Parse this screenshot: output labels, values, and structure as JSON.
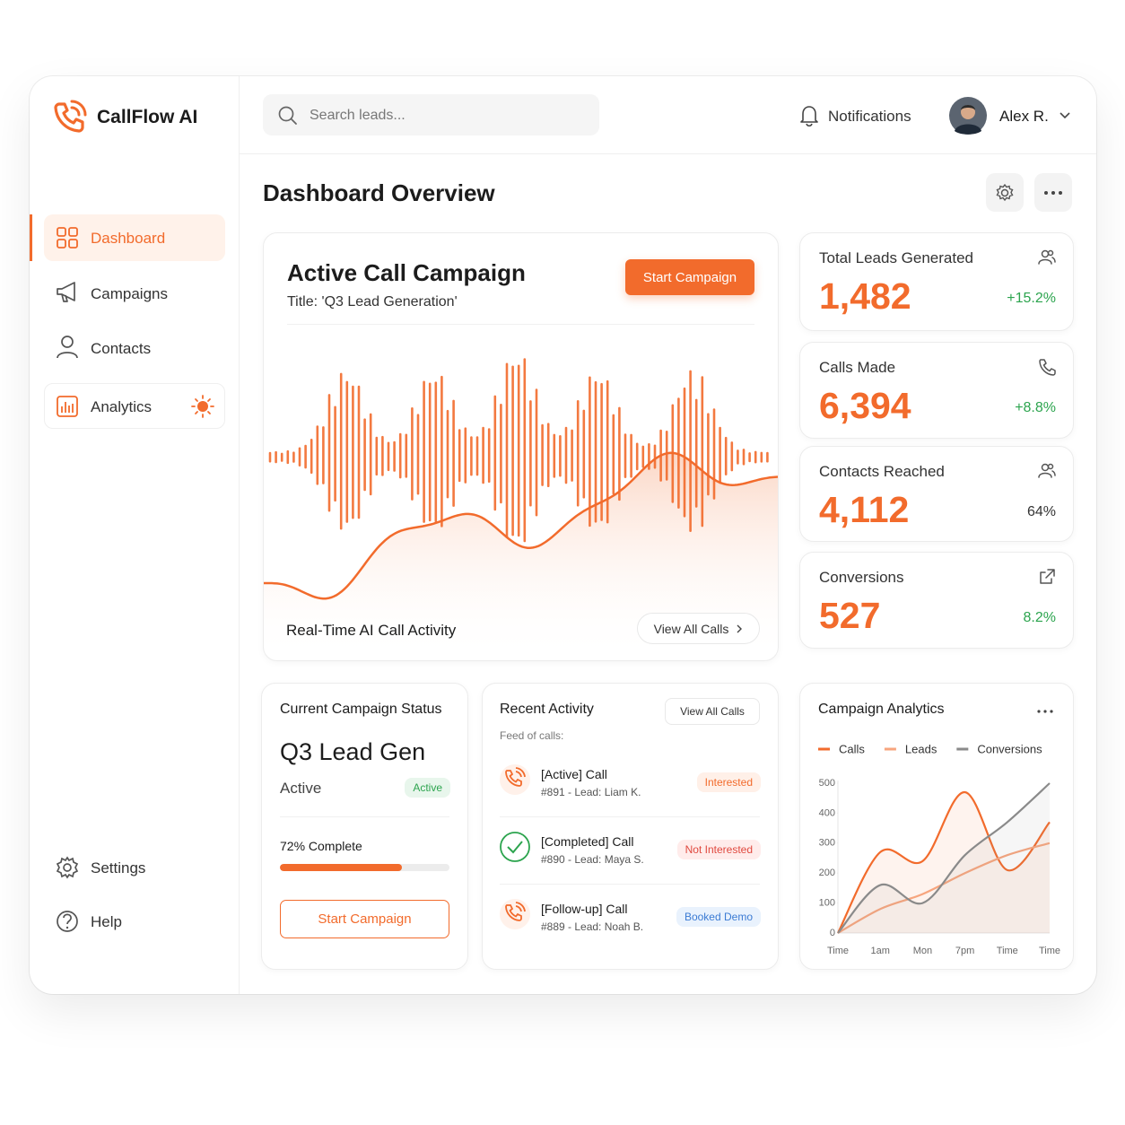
{
  "brand": "CallFlow AI",
  "search_placeholder": "Search leads...",
  "notifications": "Notifications",
  "user": "Alex R.",
  "nav": [
    "Dashboard",
    "Campaigns",
    "Contacts",
    "Analytics"
  ],
  "nav_bottom": [
    "Settings",
    "Help"
  ],
  "page_title": "Dashboard Overview",
  "campaign": {
    "title": "Active Call Campaign",
    "subtitle": "Title: 'Q3 Lead Generation'",
    "button": "Start Campaign",
    "caption": "Real-Time AI Call Activity",
    "link": "View All Calls"
  },
  "stats": [
    {
      "label": "Total Leads Generated",
      "value": "1,482",
      "change": "+15.2%"
    },
    {
      "label": "Calls Made",
      "value": "6,394",
      "change": "+8.8%"
    },
    {
      "label": "Contacts Reached",
      "value": "4,112",
      "change": "64%"
    },
    {
      "label": "Conversions",
      "value": "527",
      "change": "8.2%"
    }
  ],
  "status": {
    "heading": "Current Campaign Status",
    "name": "Q3 Lead Gen",
    "state": "Active",
    "badge": "Active",
    "progress_label": "72% Complete",
    "progress": 72,
    "button": "Start Campaign"
  },
  "activity": {
    "heading": "Recent Activity",
    "link": "View All Calls",
    "subheading": "Feed of calls:",
    "items": [
      {
        "title": "[Active] Call",
        "detail": "#891 - Lead: Liam K.",
        "tag": "Interested"
      },
      {
        "title": "[Completed] Call",
        "detail": "#890 - Lead: Maya S.",
        "tag": "Not Interested"
      },
      {
        "title": "[Follow-up] Call",
        "detail": "#889 - Lead: Noah B.",
        "tag": "Booked Demo"
      }
    ]
  },
  "chart_data": {
    "type": "line",
    "title": "Campaign Analytics",
    "categories": [
      "Time",
      "1am",
      "Mon",
      "7pm",
      "Time",
      "Time"
    ],
    "series": [
      {
        "name": "Calls",
        "color": "#f26b2c",
        "values": [
          0,
          270,
          240,
          470,
          210,
          370
        ]
      },
      {
        "name": "Leads",
        "color": "#f7a57e",
        "values": [
          0,
          80,
          130,
          200,
          260,
          300
        ]
      },
      {
        "name": "Conversions",
        "color": "#8a8a8a",
        "values": [
          0,
          160,
          100,
          260,
          370,
          500
        ]
      }
    ],
    "ylim": [
      0,
      500
    ],
    "yticks": [
      0,
      100,
      200,
      300,
      400,
      500
    ],
    "grid": false
  }
}
